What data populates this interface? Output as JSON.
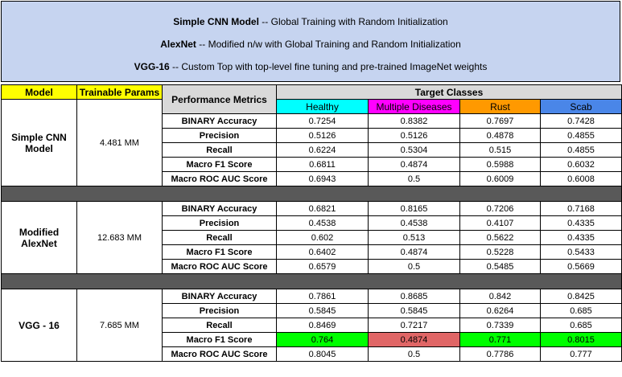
{
  "header": {
    "lines": [
      {
        "name": "Simple CNN Model",
        "sep": " -- ",
        "desc": "Global Training with Random Initialization"
      },
      {
        "name": "AlexNet",
        "sep": " -- ",
        "desc": "Modified n/w with Global Training and Random Initialization"
      },
      {
        "name": "VGG-16",
        "sep": " -- ",
        "desc": "Custom Top with top-level fine tuning and pre-trained ImageNet weights"
      }
    ]
  },
  "table": {
    "col_model": "Model",
    "col_params": "Trainable Params",
    "col_metrics": "Performance Metrics",
    "col_target": "Target Classes",
    "classes": [
      "Healthy",
      "Multiple Diseases",
      "Rust",
      "Scab"
    ],
    "class_colors": [
      "#00ffff",
      "#ff00ff",
      "#ff9900",
      "#4a86e8"
    ],
    "highlight_colors": {
      "green": "#00ff00",
      "red": "#e06666"
    },
    "metrics": [
      "BINARY Accuracy",
      "Precision",
      "Recall",
      "Macro F1 Score",
      "Macro ROC AUC Score"
    ],
    "models": [
      {
        "name": "Simple CNN Model",
        "params": "4.481 MM",
        "rows": [
          [
            "0.7254",
            "0.8382",
            "0.7697",
            "0.7428"
          ],
          [
            "0.5126",
            "0.5126",
            "0.4878",
            "0.4855"
          ],
          [
            "0.6224",
            "0.5304",
            "0.515",
            "0.4855"
          ],
          [
            "0.6811",
            "0.4874",
            "0.5988",
            "0.6032"
          ],
          [
            "0.6943",
            "0.5",
            "0.6009",
            "0.6008"
          ]
        ]
      },
      {
        "name": "Modified AlexNet",
        "params": "12.683 MM",
        "rows": [
          [
            "0.6821",
            "0.8165",
            "0.7206",
            "0.7168"
          ],
          [
            "0.4538",
            "0.4538",
            "0.4107",
            "0.4335"
          ],
          [
            "0.602",
            "0.513",
            "0.5622",
            "0.4335"
          ],
          [
            "0.6402",
            "0.4874",
            "0.5228",
            "0.5433"
          ],
          [
            "0.6579",
            "0.5",
            "0.5485",
            "0.5669"
          ]
        ]
      },
      {
        "name": "VGG - 16",
        "params": "7.685 MM",
        "rows": [
          [
            "0.7861",
            "0.8685",
            "0.842",
            "0.8425"
          ],
          [
            "0.5845",
            "0.5845",
            "0.6264",
            "0.685"
          ],
          [
            "0.8469",
            "0.7217",
            "0.7339",
            "0.685"
          ],
          [
            "0.764",
            "0.4874",
            "0.771",
            "0.8015"
          ],
          [
            "0.8045",
            "0.5",
            "0.7786",
            "0.777"
          ]
        ]
      }
    ]
  }
}
